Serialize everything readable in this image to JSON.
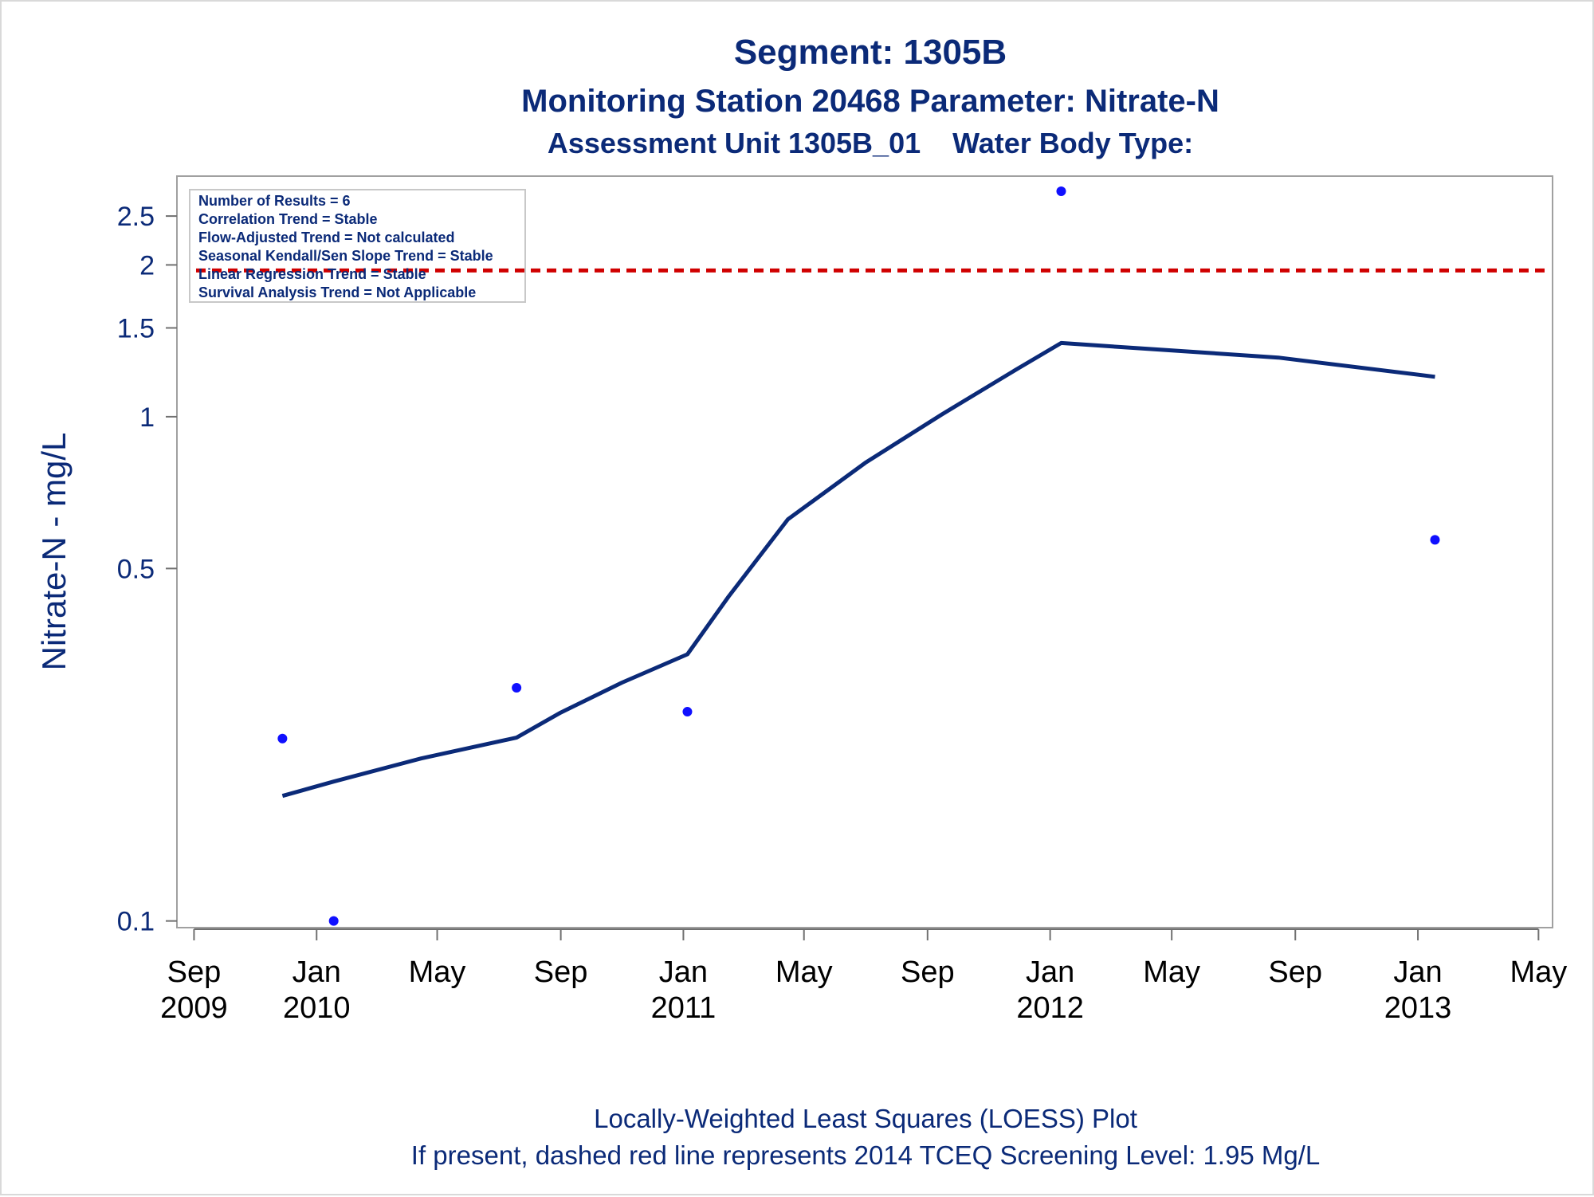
{
  "titles": {
    "title": "Segment: 1305B",
    "subtitle1": "Monitoring Station 20468 Parameter: Nitrate-N",
    "subtitle2": "Assessment Unit 1305B_01    Water Body Type:"
  },
  "footnotes": {
    "line1": "Locally-Weighted Least Squares (LOESS) Plot",
    "line2": "If present, dashed red line represents 2014 TCEQ Screening Level: 1.95 Mg/L"
  },
  "inset": {
    "lines": [
      "Number of Results = 6",
      "Correlation Trend = Stable",
      "Flow-Adjusted Trend = Not calculated",
      "Seasonal Kendall/Sen Slope Trend = Stable",
      "Linear Regression Trend = Stable",
      "Survival Analysis Trend = Not Applicable"
    ]
  },
  "colors": {
    "text": "#0b2a78",
    "loess_line": "#0b2a78",
    "points": "#1010ff",
    "screening_line": "#d00000",
    "frame": "#a0a0a0"
  },
  "chart_data": {
    "type": "scatter",
    "ylabel": "Nitrate-N - mg/L",
    "xlabel": "",
    "y_scale": "log",
    "ylim": [
      0.097,
      3.0
    ],
    "xlim": [
      "2009-08-15",
      "2013-05-15"
    ],
    "grid": false,
    "x_ticks": [
      {
        "date": "2009-09-01",
        "label": [
          "Sep",
          "2009"
        ]
      },
      {
        "date": "2010-01-01",
        "label": [
          "Jan",
          "2010"
        ]
      },
      {
        "date": "2010-05-01",
        "label": [
          "May",
          ""
        ]
      },
      {
        "date": "2010-09-01",
        "label": [
          "Sep",
          ""
        ]
      },
      {
        "date": "2011-01-01",
        "label": [
          "Jan",
          "2011"
        ]
      },
      {
        "date": "2011-05-01",
        "label": [
          "May",
          ""
        ]
      },
      {
        "date": "2011-09-01",
        "label": [
          "Sep",
          ""
        ]
      },
      {
        "date": "2012-01-01",
        "label": [
          "Jan",
          "2012"
        ]
      },
      {
        "date": "2012-05-01",
        "label": [
          "May",
          ""
        ]
      },
      {
        "date": "2012-09-01",
        "label": [
          "Sep",
          ""
        ]
      },
      {
        "date": "2013-01-01",
        "label": [
          "Jan",
          "2013"
        ]
      },
      {
        "date": "2013-05-01",
        "label": [
          "May",
          ""
        ]
      }
    ],
    "y_ticks": [
      {
        "value": 0.1,
        "label": "0.1"
      },
      {
        "value": 0.5,
        "label": "0.5"
      },
      {
        "value": 1,
        "label": "1"
      },
      {
        "value": 1.5,
        "label": "1.5"
      },
      {
        "value": 2,
        "label": "2"
      },
      {
        "value": 2.5,
        "label": "2.5"
      }
    ],
    "points": [
      {
        "x": "2009-11-28",
        "y": 0.23
      },
      {
        "x": "2010-01-18",
        "y": 0.1
      },
      {
        "x": "2010-07-19",
        "y": 0.29
      },
      {
        "x": "2011-01-05",
        "y": 0.26
      },
      {
        "x": "2012-01-12",
        "y": 2.8
      },
      {
        "x": "2013-01-18",
        "y": 0.57
      }
    ],
    "loess": [
      {
        "x": "2009-11-28",
        "y": 0.177
      },
      {
        "x": "2010-01-18",
        "y": 0.189
      },
      {
        "x": "2010-04-15",
        "y": 0.21
      },
      {
        "x": "2010-07-19",
        "y": 0.231
      },
      {
        "x": "2010-09-01",
        "y": 0.259
      },
      {
        "x": "2010-11-01",
        "y": 0.297
      },
      {
        "x": "2011-01-05",
        "y": 0.338
      },
      {
        "x": "2011-02-15",
        "y": 0.44
      },
      {
        "x": "2011-04-15",
        "y": 0.626
      },
      {
        "x": "2011-07-01",
        "y": 0.81
      },
      {
        "x": "2011-09-15",
        "y": 1.01
      },
      {
        "x": "2011-12-01",
        "y": 1.25
      },
      {
        "x": "2012-01-12",
        "y": 1.4
      },
      {
        "x": "2012-04-15",
        "y": 1.36
      },
      {
        "x": "2012-08-15",
        "y": 1.31
      },
      {
        "x": "2013-01-18",
        "y": 1.2
      }
    ],
    "reference_line": {
      "y": 1.95,
      "style": "dashed",
      "color": "#d00000"
    }
  }
}
